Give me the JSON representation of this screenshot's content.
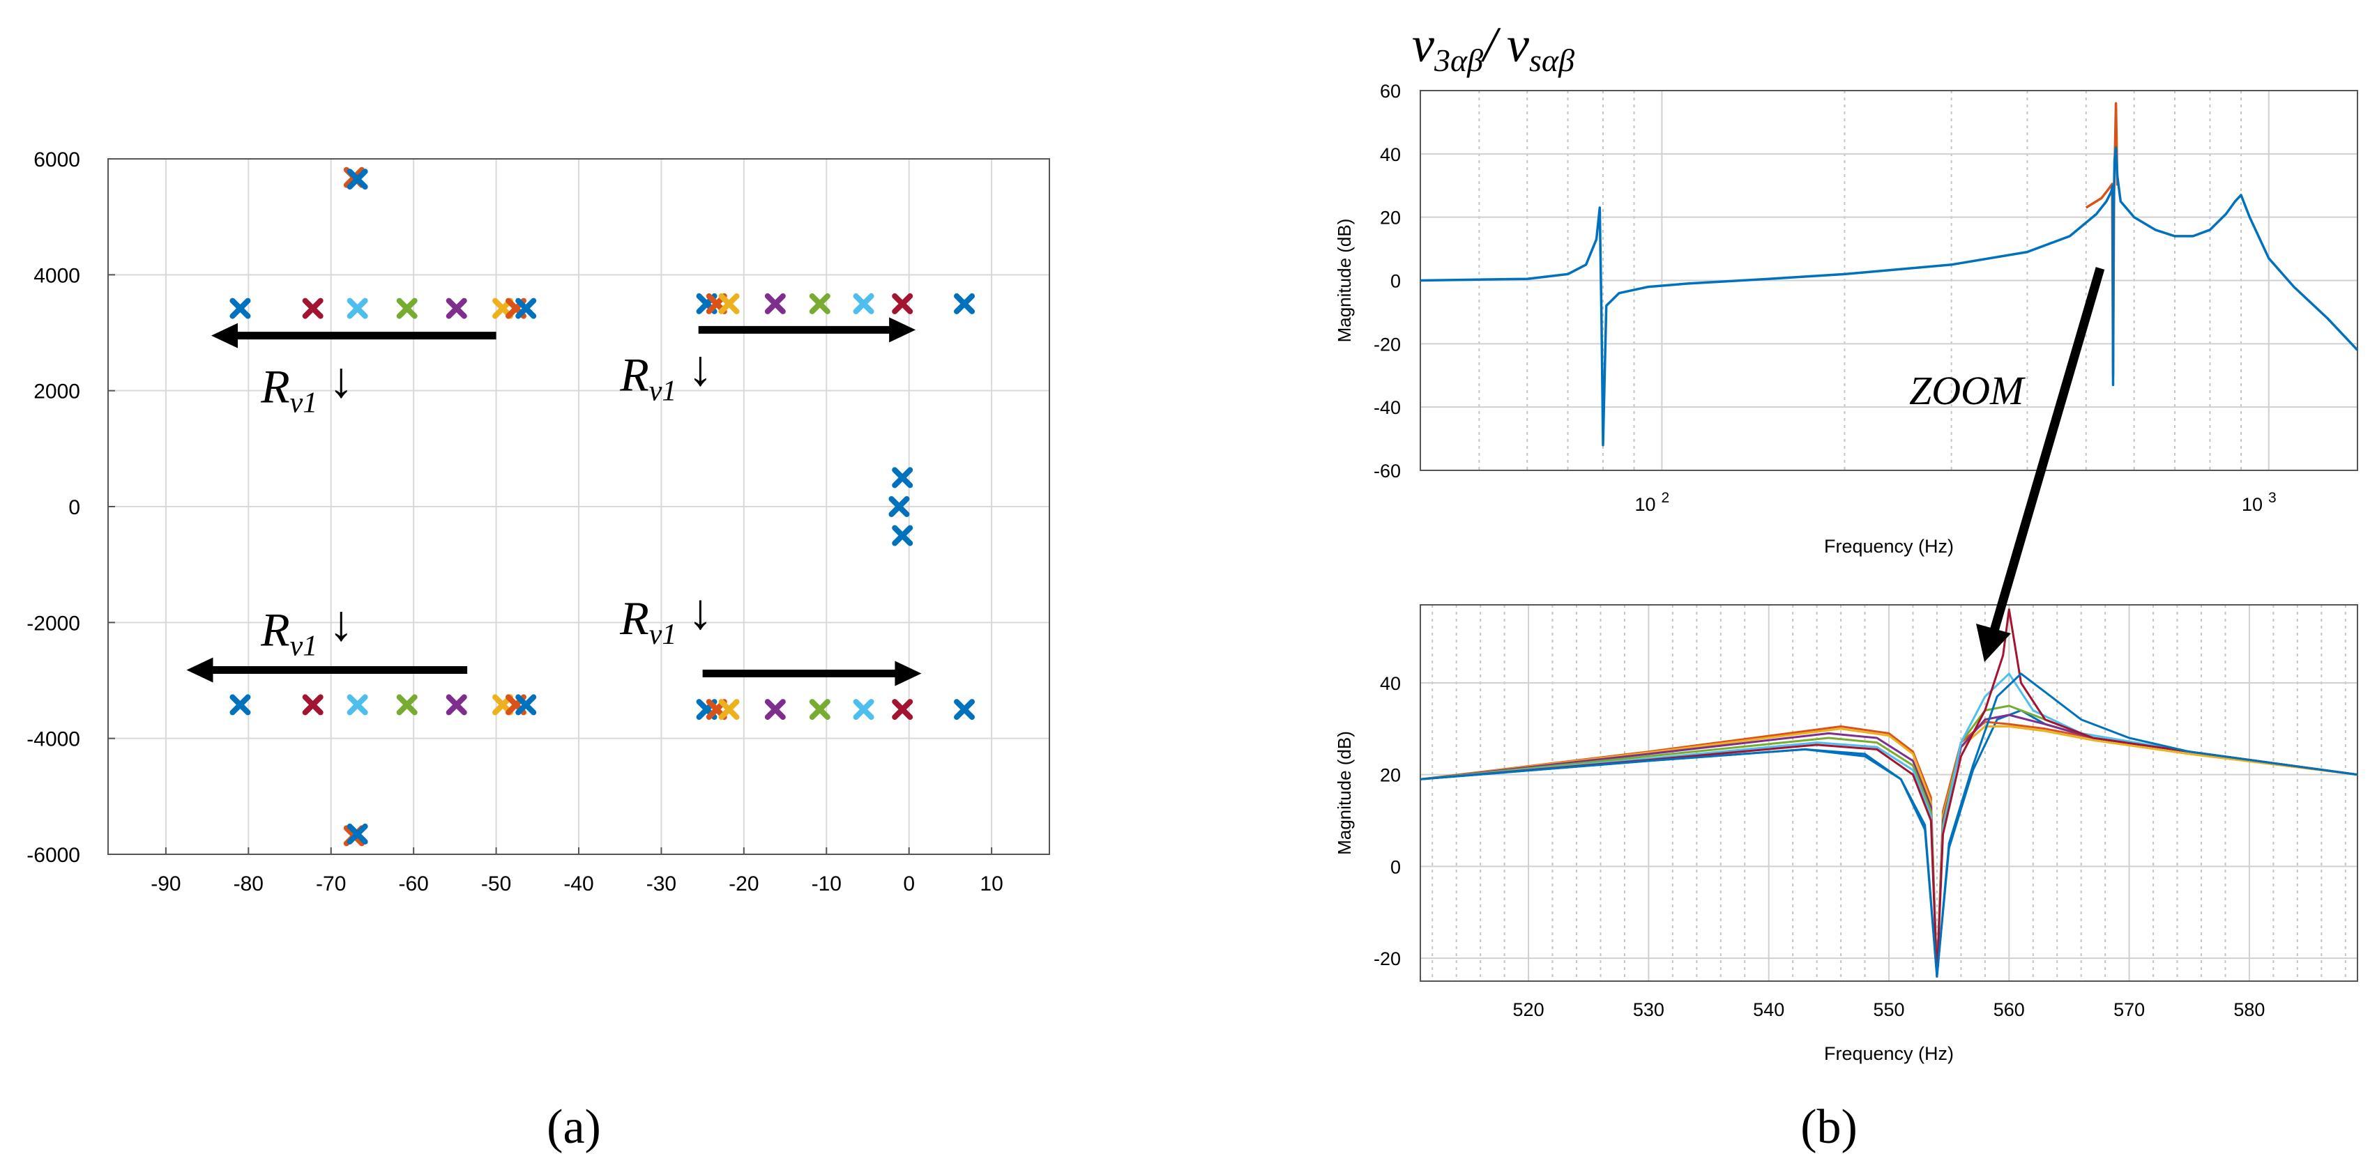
{
  "panel_labels": {
    "a": "(a)",
    "b": "(b)"
  },
  "annotations": {
    "rv1_R": "R",
    "rv1_sub": "v1",
    "rv1_arrow": "↓",
    "zoom": "ZOOM",
    "tf_num": "v",
    "tf_num_sub": "3αβ",
    "tf_slash": "/",
    "tf_den": "v",
    "tf_den_sub": "sαβ"
  },
  "chart_data": [
    {
      "type": "scatter",
      "name": "pole map",
      "xlim": [
        -97,
        17
      ],
      "ylim": [
        -6000,
        6000
      ],
      "grid": true,
      "xticks": [
        -90,
        -80,
        -70,
        -60,
        -50,
        -40,
        -30,
        -20,
        -10,
        0,
        10
      ],
      "xtick_labels": [
        "-90",
        "-80",
        "-70",
        "-60",
        "-50",
        "-40",
        "-30",
        "-20",
        "-10",
        "0",
        "10"
      ],
      "yticks": [
        6000,
        4000,
        2000,
        0,
        -2000,
        -4000,
        -6000
      ],
      "ytick_labels": [
        "6000",
        "4000",
        "2000",
        "0",
        "-2000",
        "-4000",
        "-6000"
      ],
      "marker": "x",
      "points": [
        {
          "x": -81,
          "y": 3420,
          "c": "#0072BD"
        },
        {
          "x": -72.2,
          "y": 3420,
          "c": "#A2142F"
        },
        {
          "x": -66.8,
          "y": 3420,
          "c": "#4DBEEE"
        },
        {
          "x": -60.8,
          "y": 3420,
          "c": "#77AC30"
        },
        {
          "x": -54.8,
          "y": 3420,
          "c": "#7E2F8E"
        },
        {
          "x": -49.2,
          "y": 3420,
          "c": "#EDB120"
        },
        {
          "x": -47.6,
          "y": 3420,
          "c": "#D95319"
        },
        {
          "x": -46.4,
          "y": 3420,
          "c": "#0072BD"
        },
        {
          "x": -24.5,
          "y": 3500,
          "c": "#0072BD"
        },
        {
          "x": -23.3,
          "y": 3500,
          "c": "#D95319"
        },
        {
          "x": -21.8,
          "y": 3500,
          "c": "#EDB120"
        },
        {
          "x": -16.2,
          "y": 3500,
          "c": "#7E2F8E"
        },
        {
          "x": -10.8,
          "y": 3500,
          "c": "#77AC30"
        },
        {
          "x": -5.5,
          "y": 3500,
          "c": "#4DBEEE"
        },
        {
          "x": -0.8,
          "y": 3500,
          "c": "#A2142F"
        },
        {
          "x": 6.7,
          "y": 3500,
          "c": "#0072BD"
        },
        {
          "x": -67.2,
          "y": 5680,
          "c": "#D95319"
        },
        {
          "x": -66.8,
          "y": 5650,
          "c": "#0072BD"
        },
        {
          "x": -81,
          "y": -3420,
          "c": "#0072BD"
        },
        {
          "x": -72.2,
          "y": -3420,
          "c": "#A2142F"
        },
        {
          "x": -66.8,
          "y": -3420,
          "c": "#4DBEEE"
        },
        {
          "x": -60.8,
          "y": -3420,
          "c": "#77AC30"
        },
        {
          "x": -54.8,
          "y": -3420,
          "c": "#7E2F8E"
        },
        {
          "x": -49.2,
          "y": -3420,
          "c": "#EDB120"
        },
        {
          "x": -47.6,
          "y": -3420,
          "c": "#D95319"
        },
        {
          "x": -46.4,
          "y": -3420,
          "c": "#0072BD"
        },
        {
          "x": -24.5,
          "y": -3500,
          "c": "#0072BD"
        },
        {
          "x": -23.3,
          "y": -3500,
          "c": "#D95319"
        },
        {
          "x": -21.8,
          "y": -3500,
          "c": "#EDB120"
        },
        {
          "x": -16.2,
          "y": -3500,
          "c": "#7E2F8E"
        },
        {
          "x": -10.8,
          "y": -3500,
          "c": "#77AC30"
        },
        {
          "x": -5.5,
          "y": -3500,
          "c": "#4DBEEE"
        },
        {
          "x": -0.8,
          "y": -3500,
          "c": "#A2142F"
        },
        {
          "x": 6.7,
          "y": -3500,
          "c": "#0072BD"
        },
        {
          "x": -67.2,
          "y": -5680,
          "c": "#D95319"
        },
        {
          "x": -66.8,
          "y": -5650,
          "c": "#0072BD"
        },
        {
          "x": -0.8,
          "y": 500,
          "c": "#0072BD"
        },
        {
          "x": -1.2,
          "y": 0,
          "c": "#0072BD"
        },
        {
          "x": -0.8,
          "y": -500,
          "c": "#0072BD"
        }
      ],
      "arrows": [
        {
          "x1": -50,
          "y1": 2950,
          "x2": -84.5,
          "y2": 2950
        },
        {
          "x1": -25.5,
          "y1": 3050,
          "x2": 0.8,
          "y2": 3050
        },
        {
          "x1": -53.5,
          "y1": -2820,
          "x2": -87.5,
          "y2": -2820
        },
        {
          "x1": -25,
          "y1": -2880,
          "x2": 1.5,
          "y2": -2880
        }
      ],
      "labels": [
        {
          "x": -78.5,
          "y": 1800
        },
        {
          "x": -35,
          "y": 2000
        },
        {
          "x": -78.5,
          "y": -2400
        },
        {
          "x": -35,
          "y": -2200
        }
      ]
    },
    {
      "type": "line",
      "name": "bode magnitude (full range)",
      "title": "v3αβ / vsαβ",
      "xscale": "log",
      "xlim": [
        40,
        1400
      ],
      "ylim": [
        -60,
        60
      ],
      "grid": true,
      "xticks": [
        100,
        1000
      ],
      "xtick_labels": [
        "10 2",
        "10 3"
      ],
      "yticks": [
        60,
        40,
        20,
        0,
        -20,
        -40,
        -60
      ],
      "ytick_labels": [
        "60",
        "40",
        "20",
        "0",
        "-20",
        "-40",
        "-60"
      ],
      "xlabel": "Frequency  (Hz)",
      "ylabel": "Magnitude (dB)",
      "series": [
        {
          "name": "Rv1 variation envelope",
          "color": "#D95319",
          "x": [
            500,
            530,
            545,
            552,
            554,
            556,
            558,
            560,
            563
          ],
          "y": [
            23,
            26,
            29,
            30.5,
            -30,
            28,
            42,
            56,
            30
          ]
        },
        {
          "name": "response",
          "color": "#0072BD",
          "x": [
            40,
            60,
            70,
            75,
            78,
            79,
            79.5,
            80,
            81,
            85,
            95,
            110,
            150,
            200,
            300,
            400,
            470,
            520,
            540,
            550,
            553,
            554,
            555,
            557,
            560,
            563,
            570,
            600,
            650,
            700,
            750,
            800,
            850,
            880,
            900,
            930,
            1000,
            1100,
            1250,
            1400
          ],
          "y": [
            0,
            0.5,
            2,
            5,
            13,
            23,
            -10,
            -52,
            -8,
            -4,
            -2,
            -1,
            0.5,
            2,
            5,
            9,
            14,
            21,
            25,
            28,
            30,
            -33,
            20,
            38,
            42,
            33,
            25,
            20,
            16,
            14,
            14,
            16,
            21,
            25,
            27,
            20,
            7,
            -2,
            -12,
            -22
          ]
        }
      ]
    },
    {
      "type": "line",
      "name": "bode magnitude (zoom)",
      "xlim": [
        511,
        589
      ],
      "ylim": [
        -25,
        57
      ],
      "grid": true,
      "xticks": [
        520,
        530,
        540,
        550,
        560,
        570,
        580
      ],
      "xtick_labels": [
        "520",
        "530",
        "540",
        "550",
        "560",
        "570",
        "580"
      ],
      "yticks": [
        40,
        20,
        0,
        -20
      ],
      "ytick_labels": [
        "40",
        "20",
        "0",
        "-20"
      ],
      "xlabel": "Frequency  (Hz)",
      "ylabel": "Magnitude (dB)",
      "series": [
        {
          "name": "Rv1 #1",
          "color": "#0072BD",
          "x": [
            511,
            530,
            543,
            548,
            551,
            553,
            554,
            555,
            557,
            559,
            561,
            563,
            567,
            575,
            589
          ],
          "y": [
            19,
            23,
            25.5,
            24,
            19,
            8,
            -24,
            4,
            21,
            32,
            34,
            31,
            28,
            25,
            20
          ]
        },
        {
          "name": "Rv1 #2",
          "color": "#D95319",
          "x": [
            511,
            530,
            546,
            550,
            552,
            553.5,
            554,
            554.5,
            556,
            558,
            560,
            563,
            567,
            575,
            589
          ],
          "y": [
            19,
            25,
            30.5,
            29,
            25,
            15,
            -24,
            12,
            27,
            31.5,
            31,
            30,
            28,
            25,
            20
          ]
        },
        {
          "name": "Rv1 #3",
          "color": "#EDB120",
          "x": [
            511,
            530,
            546,
            550,
            552,
            553.5,
            554,
            554.5,
            556,
            558,
            560,
            563,
            567,
            575,
            589
          ],
          "y": [
            19,
            24.8,
            30,
            28.5,
            24.5,
            14,
            -24,
            11,
            26,
            30.5,
            30.5,
            29.5,
            27.5,
            24.5,
            20
          ]
        },
        {
          "name": "Rv1 #4",
          "color": "#7E2F8E",
          "x": [
            511,
            530,
            545,
            549,
            552,
            553.5,
            554,
            554.5,
            556,
            558,
            560,
            563,
            567,
            575,
            589
          ],
          "y": [
            19,
            24.5,
            29,
            28,
            23,
            13,
            -24,
            10,
            26,
            32,
            33,
            31,
            28,
            25,
            20
          ]
        },
        {
          "name": "Rv1 #5",
          "color": "#77AC30",
          "x": [
            511,
            530,
            545,
            549,
            552,
            553.5,
            554,
            554.5,
            556,
            558,
            560,
            563,
            567,
            575,
            589
          ],
          "y": [
            19,
            24,
            28,
            27,
            22,
            12,
            -24,
            9,
            27,
            34,
            35,
            32,
            28,
            25,
            20
          ]
        },
        {
          "name": "Rv1 #6",
          "color": "#4DBEEE",
          "x": [
            511,
            530,
            544,
            549,
            552,
            553.5,
            554,
            554.5,
            556,
            558,
            560,
            562,
            566,
            575,
            589
          ],
          "y": [
            19,
            23.5,
            27,
            26,
            21,
            11,
            -24,
            8,
            27,
            37,
            42,
            34,
            29,
            25,
            20
          ]
        },
        {
          "name": "Rv1 #7",
          "color": "#A2142F",
          "x": [
            511,
            530,
            544,
            549,
            552,
            553.5,
            554,
            554.5,
            556,
            558,
            559.5,
            560,
            561,
            563,
            567,
            575,
            589
          ],
          "y": [
            19,
            23.2,
            26.5,
            25.5,
            20,
            10,
            -24,
            7,
            24,
            34,
            46,
            56,
            40,
            32,
            28,
            25,
            20
          ]
        },
        {
          "name": "Rv1 #8",
          "color": "#0072BD",
          "x": [
            511,
            530,
            543,
            548,
            551,
            553,
            554,
            555,
            557,
            559,
            561,
            563,
            566,
            570,
            575,
            589
          ],
          "y": [
            19,
            23,
            25.5,
            24.5,
            19,
            9,
            -24,
            5,
            22,
            37,
            42,
            38,
            32,
            28,
            25,
            20
          ]
        }
      ]
    }
  ]
}
